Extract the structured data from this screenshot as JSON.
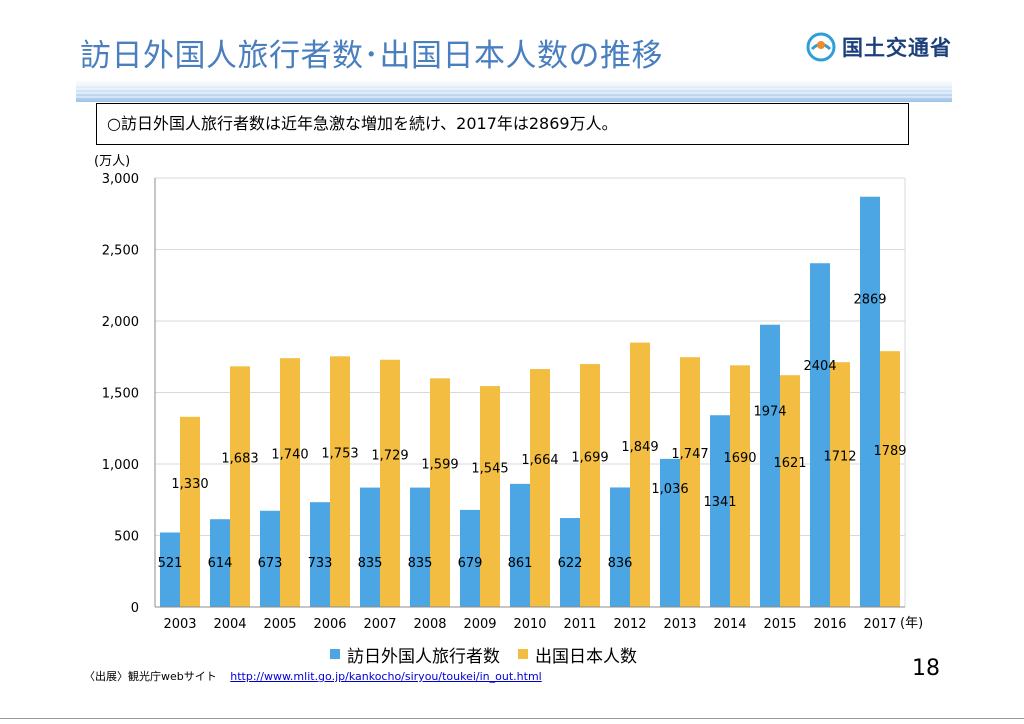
{
  "slide": {
    "title": "訪日外国人旅行者数･出国日本人数の推移",
    "logo_text": "国土交通省",
    "summary": "○訪日外国人旅行者数は近年急激な増加を続け、2017年は2869万人。",
    "source_label": "〈出展〉観光庁webサイト",
    "source_url": "http://www.mlit.go.jp/kankocho/siryou/toukei/in_out.html",
    "page_number": "18"
  },
  "colors": {
    "title": "#4a7fbf",
    "inbound_bar": "#4ba6e3",
    "outbound_bar": "#f3bd42",
    "grid": "#d9d9d9",
    "logo": "#1b3f7a"
  },
  "chart_data": {
    "type": "bar",
    "ylabel": "(万人)",
    "xlabel": "(年)",
    "ylim": [
      0,
      3000
    ],
    "yticks": [
      0,
      500,
      1000,
      1500,
      2000,
      2500,
      3000
    ],
    "ytick_labels": [
      "0",
      "500",
      "1,000",
      "1,500",
      "2,000",
      "2,500",
      "3,000"
    ],
    "grid": true,
    "legend_position": "bottom",
    "categories": [
      "2003",
      "2004",
      "2005",
      "2006",
      "2007",
      "2008",
      "2009",
      "2010",
      "2011",
      "2012",
      "2013",
      "2014",
      "2015",
      "2016",
      "2017"
    ],
    "series": [
      {
        "name": "訪日外国人旅行者数",
        "values": [
          521,
          614,
          673,
          733,
          835,
          835,
          679,
          861,
          622,
          836,
          1036,
          1341,
          1974,
          2404,
          2869
        ],
        "labels": [
          "521",
          "614",
          "673",
          "733",
          "835",
          "835",
          "679",
          "861",
          "622",
          "836",
          "1,036",
          "1341",
          "1974",
          "2404",
          "2869"
        ]
      },
      {
        "name": "出国日本人数",
        "values": [
          1330,
          1683,
          1740,
          1753,
          1729,
          1599,
          1545,
          1664,
          1699,
          1849,
          1747,
          1690,
          1621,
          1712,
          1789
        ],
        "labels": [
          "1,330",
          "1,683",
          "1,740",
          "1,753",
          "1,729",
          "1,599",
          "1,545",
          "1,664",
          "1,699",
          "1,849",
          "1,747",
          "1690",
          "1621",
          "1712",
          "1789"
        ]
      }
    ]
  }
}
